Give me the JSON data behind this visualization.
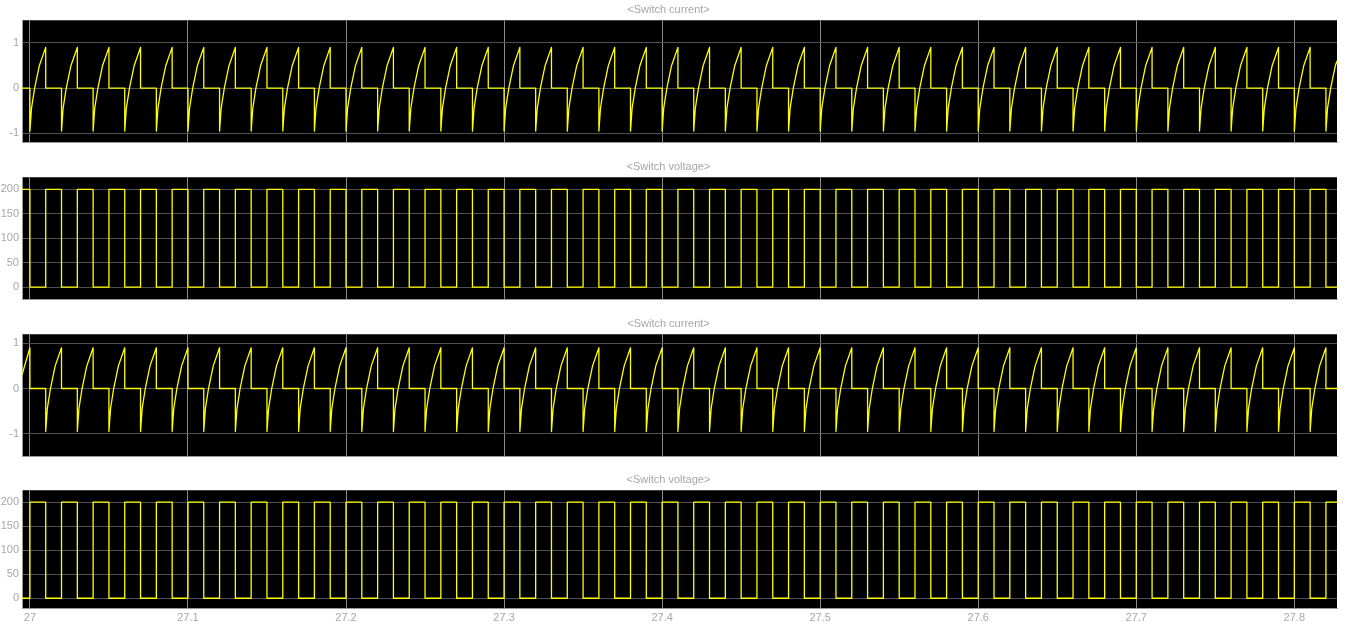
{
  "chart_data": [
    {
      "type": "line",
      "title": "<Switch current>",
      "color": "#ffff00",
      "marker": "none",
      "grid": true,
      "tick_labels": "y",
      "xlim": [
        26.995,
        27.827
      ],
      "xticks": [
        27,
        27.1,
        27.2,
        27.3,
        27.4,
        27.5,
        27.6,
        27.7,
        27.8
      ],
      "ylim": [
        -1.2,
        1.5
      ],
      "yticks": [
        -1,
        0,
        1
      ],
      "x": [
        26.995,
        27,
        27,
        27.001,
        27.003,
        27.006,
        27.01,
        27.01,
        27.02,
        27.02,
        27.021,
        27.023,
        27.026,
        27.03,
        27.03,
        27.04,
        27.04,
        27.041,
        27.043,
        27.046,
        27.05,
        27.05,
        27.06,
        27.06,
        27.061,
        27.063,
        27.066,
        27.07,
        27.07,
        27.08,
        27.08,
        27.081,
        27.083,
        27.086,
        27.09,
        27.09,
        27.1,
        27.1,
        27.101,
        27.103,
        27.106,
        27.11,
        27.11,
        27.12,
        27.12,
        27.121,
        27.123,
        27.126,
        27.13,
        27.13,
        27.14,
        27.14,
        27.141,
        27.143,
        27.146,
        27.15,
        27.15,
        27.16,
        27.16,
        27.161,
        27.163,
        27.166,
        27.17,
        27.17,
        27.18,
        27.18,
        27.181,
        27.183,
        27.186,
        27.19,
        27.19,
        27.2,
        27.2,
        27.201,
        27.203,
        27.206,
        27.21,
        27.21,
        27.22,
        27.22,
        27.221,
        27.223,
        27.226,
        27.23,
        27.23,
        27.24,
        27.24,
        27.241,
        27.243,
        27.246,
        27.25,
        27.25,
        27.26,
        27.26,
        27.261,
        27.263,
        27.266,
        27.27,
        27.27,
        27.28,
        27.28,
        27.281,
        27.283,
        27.286,
        27.29,
        27.29,
        27.3,
        27.3,
        27.301,
        27.303,
        27.306,
        27.31,
        27.31,
        27.32,
        27.32,
        27.321,
        27.323,
        27.326,
        27.33,
        27.33,
        27.34,
        27.34,
        27.341,
        27.343,
        27.346,
        27.35,
        27.35,
        27.36,
        27.36,
        27.361,
        27.363,
        27.366,
        27.37,
        27.37,
        27.38,
        27.38,
        27.381,
        27.383,
        27.386,
        27.39,
        27.39,
        27.4,
        27.4,
        27.401,
        27.403,
        27.406,
        27.41,
        27.41,
        27.42,
        27.42,
        27.421,
        27.423,
        27.426,
        27.43,
        27.43,
        27.44,
        27.44,
        27.441,
        27.443,
        27.446,
        27.45,
        27.45,
        27.46,
        27.46,
        27.461,
        27.463,
        27.466,
        27.47,
        27.47,
        27.48,
        27.48,
        27.481,
        27.483,
        27.486,
        27.49,
        27.49,
        27.5,
        27.5,
        27.501,
        27.503,
        27.506,
        27.51,
        27.51,
        27.52,
        27.52,
        27.521,
        27.523,
        27.526,
        27.53,
        27.53,
        27.54,
        27.54,
        27.541,
        27.543,
        27.546,
        27.55,
        27.55,
        27.56,
        27.56,
        27.561,
        27.563,
        27.566,
        27.57,
        27.57,
        27.58,
        27.58,
        27.581,
        27.583,
        27.586,
        27.59,
        27.59,
        27.6,
        27.6,
        27.601,
        27.603,
        27.606,
        27.61,
        27.61,
        27.62,
        27.62,
        27.621,
        27.623,
        27.626,
        27.63,
        27.63,
        27.64,
        27.64,
        27.641,
        27.643,
        27.646,
        27.65,
        27.65,
        27.66,
        27.66,
        27.661,
        27.663,
        27.666,
        27.67,
        27.67,
        27.68,
        27.68,
        27.681,
        27.683,
        27.686,
        27.69,
        27.69,
        27.7,
        27.7,
        27.701,
        27.703,
        27.706,
        27.71,
        27.71,
        27.72,
        27.72,
        27.721,
        27.723,
        27.726,
        27.73,
        27.73,
        27.74,
        27.74,
        27.741,
        27.743,
        27.746,
        27.75,
        27.75,
        27.76,
        27.76,
        27.761,
        27.763,
        27.766,
        27.77,
        27.77,
        27.78,
        27.78,
        27.781,
        27.783,
        27.786,
        27.79,
        27.79,
        27.8,
        27.8,
        27.801,
        27.803,
        27.806,
        27.81,
        27.81,
        27.82,
        27.82,
        27.821,
        27.823,
        27.826,
        27.827
      ],
      "values": [
        0,
        0,
        -0.95,
        -0.45,
        0,
        0.5,
        0.9,
        0,
        0,
        -0.95,
        -0.45,
        0,
        0.5,
        0.9,
        0,
        0,
        -0.95,
        -0.45,
        0,
        0.5,
        0.9,
        0,
        0,
        -0.95,
        -0.45,
        0,
        0.5,
        0.9,
        0,
        0,
        -0.95,
        -0.45,
        0,
        0.5,
        0.9,
        0,
        0,
        -0.95,
        -0.45,
        0,
        0.5,
        0.9,
        0,
        0,
        -0.95,
        -0.45,
        0,
        0.5,
        0.9,
        0,
        0,
        -0.95,
        -0.45,
        0,
        0.5,
        0.9,
        0,
        0,
        -0.95,
        -0.45,
        0,
        0.5,
        0.9,
        0,
        0,
        -0.95,
        -0.45,
        0,
        0.5,
        0.9,
        0,
        0,
        -0.95,
        -0.45,
        0,
        0.5,
        0.9,
        0,
        0,
        -0.95,
        -0.45,
        0,
        0.5,
        0.9,
        0,
        0,
        -0.95,
        -0.45,
        0,
        0.5,
        0.9,
        0,
        0,
        -0.95,
        -0.45,
        0,
        0.5,
        0.9,
        0,
        0,
        -0.95,
        -0.45,
        0,
        0.5,
        0.9,
        0,
        0,
        -0.95,
        -0.45,
        0,
        0.5,
        0.9,
        0,
        0,
        -0.95,
        -0.45,
        0,
        0.5,
        0.9,
        0,
        0,
        -0.95,
        -0.45,
        0,
        0.5,
        0.9,
        0,
        0,
        -0.95,
        -0.45,
        0,
        0.5,
        0.9,
        0,
        0,
        -0.95,
        -0.45,
        0,
        0.5,
        0.9,
        0,
        0,
        -0.95,
        -0.45,
        0,
        0.5,
        0.9,
        0,
        0,
        -0.95,
        -0.45,
        0,
        0.5,
        0.9,
        0,
        0,
        -0.95,
        -0.45,
        0,
        0.5,
        0.9,
        0,
        0,
        -0.95,
        -0.45,
        0,
        0.5,
        0.9,
        0,
        0,
        -0.95,
        -0.45,
        0,
        0.5,
        0.9,
        0,
        0,
        -0.95,
        -0.45,
        0,
        0.5,
        0.9,
        0,
        0,
        -0.95,
        -0.45,
        0,
        0.5,
        0.9,
        0,
        0,
        -0.95,
        -0.45,
        0,
        0.5,
        0.9,
        0,
        0,
        -0.95,
        -0.45,
        0,
        0.5,
        0.9,
        0,
        0,
        -0.95,
        -0.45,
        0,
        0.5,
        0.9,
        0,
        0,
        -0.95,
        -0.45,
        0,
        0.5,
        0.9,
        0,
        0,
        -0.95,
        -0.45,
        0,
        0.5,
        0.9,
        0,
        0,
        -0.95,
        -0.45,
        0,
        0.5,
        0.9,
        0,
        0,
        -0.95,
        -0.45,
        0,
        0.5,
        0.9,
        0,
        0,
        -0.95,
        -0.45,
        0,
        0.5,
        0.9,
        0,
        0,
        -0.95,
        -0.45,
        0,
        0.5,
        0.9,
        0,
        0,
        -0.95,
        -0.45,
        0,
        0.5,
        0.9,
        0,
        0,
        -0.95,
        -0.45,
        0,
        0.5,
        0.9,
        0,
        0,
        -0.95,
        -0.45,
        0,
        0.5,
        0.9,
        0,
        0,
        -0.95,
        -0.45,
        0,
        0.5,
        0.9,
        0,
        0,
        -0.95,
        -0.45,
        0,
        0.5,
        0.9,
        0,
        0,
        -0.95,
        -0.45,
        0,
        0.5,
        0.6
      ]
    },
    {
      "type": "step",
      "title": "<Switch voltage>",
      "color": "#ffff00",
      "marker": "none",
      "grid": true,
      "tick_labels": "y",
      "xlim": [
        26.995,
        27.827
      ],
      "xticks": [
        27,
        27.1,
        27.2,
        27.3,
        27.4,
        27.5,
        27.6,
        27.7,
        27.8
      ],
      "ylim": [
        -25,
        225
      ],
      "yticks": [
        0,
        50,
        100,
        150,
        200
      ],
      "x": [
        26.995,
        27,
        27.01,
        27.02,
        27.03,
        27.04,
        27.05,
        27.06,
        27.07,
        27.08,
        27.09,
        27.1,
        27.11,
        27.12,
        27.13,
        27.14,
        27.15,
        27.16,
        27.17,
        27.18,
        27.19,
        27.2,
        27.21,
        27.22,
        27.23,
        27.24,
        27.25,
        27.26,
        27.27,
        27.28,
        27.29,
        27.3,
        27.31,
        27.32,
        27.33,
        27.34,
        27.35,
        27.36,
        27.37,
        27.38,
        27.39,
        27.4,
        27.41,
        27.42,
        27.43,
        27.44,
        27.45,
        27.46,
        27.47,
        27.48,
        27.49,
        27.5,
        27.51,
        27.52,
        27.53,
        27.54,
        27.55,
        27.56,
        27.57,
        27.58,
        27.59,
        27.6,
        27.61,
        27.62,
        27.63,
        27.64,
        27.65,
        27.66,
        27.67,
        27.68,
        27.69,
        27.7,
        27.71,
        27.72,
        27.73,
        27.74,
        27.75,
        27.76,
        27.77,
        27.78,
        27.79,
        27.8,
        27.81,
        27.82,
        27.827
      ],
      "values": [
        200,
        0,
        200,
        0,
        200,
        0,
        200,
        0,
        200,
        0,
        200,
        0,
        200,
        0,
        200,
        0,
        200,
        0,
        200,
        0,
        200,
        0,
        200,
        0,
        200,
        0,
        200,
        0,
        200,
        0,
        200,
        0,
        200,
        0,
        200,
        0,
        200,
        0,
        200,
        0,
        200,
        0,
        200,
        0,
        200,
        0,
        200,
        0,
        200,
        0,
        200,
        0,
        200,
        0,
        200,
        0,
        200,
        0,
        200,
        0,
        200,
        0,
        200,
        0,
        200,
        0,
        200,
        0,
        200,
        0,
        200,
        0,
        200,
        0,
        200,
        0,
        200,
        0,
        200,
        0,
        200,
        0,
        200,
        0,
        0
      ]
    },
    {
      "type": "line",
      "title": "<Switch current>",
      "color": "#ffff00",
      "marker": "none",
      "grid": true,
      "tick_labels": "y",
      "xlim": [
        26.995,
        27.827
      ],
      "xticks": [
        27,
        27.1,
        27.2,
        27.3,
        27.4,
        27.5,
        27.6,
        27.7,
        27.8
      ],
      "ylim": [
        -1.5,
        1.2
      ],
      "yticks": [
        -1,
        0,
        1
      ],
      "x": [
        26.995,
        27,
        27,
        27.01,
        27.01,
        27.011,
        27.013,
        27.016,
        27.02,
        27.02,
        27.03,
        27.03,
        27.031,
        27.033,
        27.036,
        27.04,
        27.04,
        27.05,
        27.05,
        27.051,
        27.053,
        27.056,
        27.06,
        27.06,
        27.07,
        27.07,
        27.071,
        27.073,
        27.076,
        27.08,
        27.08,
        27.09,
        27.09,
        27.091,
        27.093,
        27.096,
        27.1,
        27.1,
        27.11,
        27.11,
        27.111,
        27.113,
        27.116,
        27.12,
        27.12,
        27.13,
        27.13,
        27.131,
        27.133,
        27.136,
        27.14,
        27.14,
        27.15,
        27.15,
        27.151,
        27.153,
        27.156,
        27.16,
        27.16,
        27.17,
        27.17,
        27.171,
        27.173,
        27.176,
        27.18,
        27.18,
        27.19,
        27.19,
        27.191,
        27.193,
        27.196,
        27.2,
        27.2,
        27.21,
        27.21,
        27.211,
        27.213,
        27.216,
        27.22,
        27.22,
        27.23,
        27.23,
        27.231,
        27.233,
        27.236,
        27.24,
        27.24,
        27.25,
        27.25,
        27.251,
        27.253,
        27.256,
        27.26,
        27.26,
        27.27,
        27.27,
        27.271,
        27.273,
        27.276,
        27.28,
        27.28,
        27.29,
        27.29,
        27.291,
        27.293,
        27.296,
        27.3,
        27.3,
        27.31,
        27.31,
        27.311,
        27.313,
        27.316,
        27.32,
        27.32,
        27.33,
        27.33,
        27.331,
        27.333,
        27.336,
        27.34,
        27.34,
        27.35,
        27.35,
        27.351,
        27.353,
        27.356,
        27.36,
        27.36,
        27.37,
        27.37,
        27.371,
        27.373,
        27.376,
        27.38,
        27.38,
        27.39,
        27.39,
        27.391,
        27.393,
        27.396,
        27.4,
        27.4,
        27.41,
        27.41,
        27.411,
        27.413,
        27.416,
        27.42,
        27.42,
        27.43,
        27.43,
        27.431,
        27.433,
        27.436,
        27.44,
        27.44,
        27.45,
        27.45,
        27.451,
        27.453,
        27.456,
        27.46,
        27.46,
        27.47,
        27.47,
        27.471,
        27.473,
        27.476,
        27.48,
        27.48,
        27.49,
        27.49,
        27.491,
        27.493,
        27.496,
        27.5,
        27.5,
        27.51,
        27.51,
        27.511,
        27.513,
        27.516,
        27.52,
        27.52,
        27.53,
        27.53,
        27.531,
        27.533,
        27.536,
        27.54,
        27.54,
        27.55,
        27.55,
        27.551,
        27.553,
        27.556,
        27.56,
        27.56,
        27.57,
        27.57,
        27.571,
        27.573,
        27.576,
        27.58,
        27.58,
        27.59,
        27.59,
        27.591,
        27.593,
        27.596,
        27.6,
        27.6,
        27.61,
        27.61,
        27.611,
        27.613,
        27.616,
        27.62,
        27.62,
        27.63,
        27.63,
        27.631,
        27.633,
        27.636,
        27.64,
        27.64,
        27.65,
        27.65,
        27.651,
        27.653,
        27.656,
        27.66,
        27.66,
        27.67,
        27.67,
        27.671,
        27.673,
        27.676,
        27.68,
        27.68,
        27.69,
        27.69,
        27.691,
        27.693,
        27.696,
        27.7,
        27.7,
        27.71,
        27.71,
        27.711,
        27.713,
        27.716,
        27.72,
        27.72,
        27.73,
        27.73,
        27.731,
        27.733,
        27.736,
        27.74,
        27.74,
        27.75,
        27.75,
        27.751,
        27.753,
        27.756,
        27.76,
        27.76,
        27.77,
        27.77,
        27.771,
        27.773,
        27.776,
        27.78,
        27.78,
        27.79,
        27.79,
        27.791,
        27.793,
        27.796,
        27.8,
        27.8,
        27.81,
        27.81,
        27.811,
        27.813,
        27.816,
        27.82,
        27.82,
        27.827
      ],
      "values": [
        0.3,
        0.9,
        0,
        0,
        -0.95,
        -0.45,
        0,
        0.5,
        0.9,
        0,
        0,
        -0.95,
        -0.45,
        0,
        0.5,
        0.9,
        0,
        0,
        -0.95,
        -0.45,
        0,
        0.5,
        0.9,
        0,
        0,
        -0.95,
        -0.45,
        0,
        0.5,
        0.9,
        0,
        0,
        -0.95,
        -0.45,
        0,
        0.5,
        0.9,
        0,
        0,
        -0.95,
        -0.45,
        0,
        0.5,
        0.9,
        0,
        0,
        -0.95,
        -0.45,
        0,
        0.5,
        0.9,
        0,
        0,
        -0.95,
        -0.45,
        0,
        0.5,
        0.9,
        0,
        0,
        -0.95,
        -0.45,
        0,
        0.5,
        0.9,
        0,
        0,
        -0.95,
        -0.45,
        0,
        0.5,
        0.9,
        0,
        0,
        -0.95,
        -0.45,
        0,
        0.5,
        0.9,
        0,
        0,
        -0.95,
        -0.45,
        0,
        0.5,
        0.9,
        0,
        0,
        -0.95,
        -0.45,
        0,
        0.5,
        0.9,
        0,
        0,
        -0.95,
        -0.45,
        0,
        0.5,
        0.9,
        0,
        0,
        -0.95,
        -0.45,
        0,
        0.5,
        0.9,
        0,
        0,
        -0.95,
        -0.45,
        0,
        0.5,
        0.9,
        0,
        0,
        -0.95,
        -0.45,
        0,
        0.5,
        0.9,
        0,
        0,
        -0.95,
        -0.45,
        0,
        0.5,
        0.9,
        0,
        0,
        -0.95,
        -0.45,
        0,
        0.5,
        0.9,
        0,
        0,
        -0.95,
        -0.45,
        0,
        0.5,
        0.9,
        0,
        0,
        -0.95,
        -0.45,
        0,
        0.5,
        0.9,
        0,
        0,
        -0.95,
        -0.45,
        0,
        0.5,
        0.9,
        0,
        0,
        -0.95,
        -0.45,
        0,
        0.5,
        0.9,
        0,
        0,
        -0.95,
        -0.45,
        0,
        0.5,
        0.9,
        0,
        0,
        -0.95,
        -0.45,
        0,
        0.5,
        0.9,
        0,
        0,
        -0.95,
        -0.45,
        0,
        0.5,
        0.9,
        0,
        0,
        -0.95,
        -0.45,
        0,
        0.5,
        0.9,
        0,
        0,
        -0.95,
        -0.45,
        0,
        0.5,
        0.9,
        0,
        0,
        -0.95,
        -0.45,
        0,
        0.5,
        0.9,
        0,
        0,
        -0.95,
        -0.45,
        0,
        0.5,
        0.9,
        0,
        0,
        -0.95,
        -0.45,
        0,
        0.5,
        0.9,
        0,
        0,
        -0.95,
        -0.45,
        0,
        0.5,
        0.9,
        0,
        0,
        -0.95,
        -0.45,
        0,
        0.5,
        0.9,
        0,
        0,
        -0.95,
        -0.45,
        0,
        0.5,
        0.9,
        0,
        0,
        -0.95,
        -0.45,
        0,
        0.5,
        0.9,
        0,
        0,
        -0.95,
        -0.45,
        0,
        0.5,
        0.9,
        0,
        0,
        -0.95,
        -0.45,
        0,
        0.5,
        0.9,
        0,
        0,
        -0.95,
        -0.45,
        0,
        0.5,
        0.9,
        0,
        0,
        -0.95,
        -0.45,
        0,
        0.5,
        0.9,
        0,
        0,
        -0.95,
        -0.45,
        0,
        0.5,
        0.9,
        0,
        0,
        -0.95,
        -0.45,
        0,
        0.5,
        0.9,
        0,
        0
      ]
    },
    {
      "type": "step",
      "title": "<Switch voltage>",
      "color": "#ffff00",
      "marker": "none",
      "grid": true,
      "xlim": [
        26.995,
        27.827
      ],
      "xticks": [
        27,
        27.1,
        27.2,
        27.3,
        27.4,
        27.5,
        27.6,
        27.7,
        27.8
      ],
      "ylim": [
        -22,
        225
      ],
      "yticks": [
        0,
        50,
        100,
        150,
        200
      ],
      "x": [
        26.995,
        27,
        27.01,
        27.02,
        27.03,
        27.04,
        27.05,
        27.06,
        27.07,
        27.08,
        27.09,
        27.1,
        27.11,
        27.12,
        27.13,
        27.14,
        27.15,
        27.16,
        27.17,
        27.18,
        27.19,
        27.2,
        27.21,
        27.22,
        27.23,
        27.24,
        27.25,
        27.26,
        27.27,
        27.28,
        27.29,
        27.3,
        27.31,
        27.32,
        27.33,
        27.34,
        27.35,
        27.36,
        27.37,
        27.38,
        27.39,
        27.4,
        27.41,
        27.42,
        27.43,
        27.44,
        27.45,
        27.46,
        27.47,
        27.48,
        27.49,
        27.5,
        27.51,
        27.52,
        27.53,
        27.54,
        27.55,
        27.56,
        27.57,
        27.58,
        27.59,
        27.6,
        27.61,
        27.62,
        27.63,
        27.64,
        27.65,
        27.66,
        27.67,
        27.68,
        27.69,
        27.7,
        27.71,
        27.72,
        27.73,
        27.74,
        27.75,
        27.76,
        27.77,
        27.78,
        27.79,
        27.8,
        27.81,
        27.82,
        27.827
      ],
      "values": [
        0,
        200,
        0,
        200,
        0,
        200,
        0,
        200,
        0,
        200,
        0,
        200,
        0,
        200,
        0,
        200,
        0,
        200,
        0,
        200,
        0,
        200,
        0,
        200,
        0,
        200,
        0,
        200,
        0,
        200,
        0,
        200,
        0,
        200,
        0,
        200,
        0,
        200,
        0,
        200,
        0,
        200,
        0,
        200,
        0,
        200,
        0,
        200,
        0,
        200,
        0,
        200,
        0,
        200,
        0,
        200,
        0,
        200,
        0,
        200,
        0,
        200,
        0,
        200,
        0,
        200,
        0,
        200,
        0,
        200,
        0,
        200,
        0,
        200,
        0,
        200,
        0,
        200,
        0,
        200,
        0,
        200,
        0,
        200,
        200
      ]
    }
  ]
}
